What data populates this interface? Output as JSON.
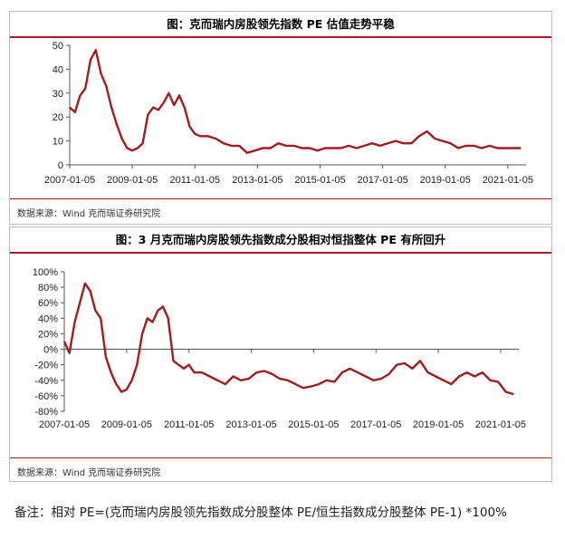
{
  "panel1": {
    "title": "图：克而瑞内房股领先指数 PE 估值走势平稳",
    "source": "数据来源：Wind  克而瑞证券研究院"
  },
  "panel2": {
    "title": "图：3 月克而瑞内房股领先指数成分股相对恒指整体 PE 有所回升",
    "source": "数据来源：Wind  克而瑞证券研究院"
  },
  "note": "备注：相对 PE=(克而瑞内房股领先指数成分股整体 PE/恒生指数成分股整体 PE-1) *100%",
  "chart_data": [
    {
      "type": "line",
      "title": "图：克而瑞内房股领先指数 PE 估值走势平稳",
      "xlabel": "",
      "ylabel": "",
      "ylim": [
        0,
        50
      ],
      "yticks": [
        "0",
        "10",
        "20",
        "30",
        "40",
        "50"
      ],
      "xticks": [
        "2007-01-05",
        "2009-01-05",
        "2011-01-05",
        "2013-01-05",
        "2015-01-05",
        "2017-01-05",
        "2019-01-05",
        "2021-01-05"
      ],
      "line_color": "#a11d22",
      "grid": false,
      "series": [
        {
          "x": [
            "2007-01",
            "2007-03",
            "2007-05",
            "2007-07",
            "2007-09",
            "2007-11",
            "2008-01",
            "2008-03",
            "2008-05",
            "2008-07",
            "2008-09",
            "2008-11",
            "2009-01",
            "2009-03",
            "2009-05",
            "2009-07",
            "2009-09",
            "2009-11",
            "2010-01",
            "2010-03",
            "2010-05",
            "2010-07",
            "2010-09",
            "2010-11",
            "2011-01",
            "2011-03",
            "2011-06",
            "2011-09",
            "2011-12",
            "2012-03",
            "2012-06",
            "2012-09",
            "2012-12",
            "2013-03",
            "2013-06",
            "2013-09",
            "2013-12",
            "2014-03",
            "2014-06",
            "2014-09",
            "2014-12",
            "2015-03",
            "2015-06",
            "2015-09",
            "2015-12",
            "2016-03",
            "2016-06",
            "2016-09",
            "2016-12",
            "2017-03",
            "2017-06",
            "2017-09",
            "2017-12",
            "2018-03",
            "2018-06",
            "2018-09",
            "2018-12",
            "2019-03",
            "2019-06",
            "2019-09",
            "2019-12",
            "2020-03",
            "2020-06",
            "2020-09",
            "2020-12",
            "2021-03",
            "2021-06"
          ],
          "values": [
            24,
            22,
            29,
            32,
            44,
            48,
            38,
            33,
            24,
            17,
            11,
            7,
            6,
            7,
            9,
            21,
            24,
            23,
            26,
            30,
            25,
            29,
            24,
            16,
            13,
            12,
            12,
            11,
            9,
            8,
            8,
            5,
            6,
            7,
            7,
            9,
            8,
            8,
            7,
            7,
            6,
            7,
            7,
            7,
            8,
            7,
            8,
            9,
            8,
            9,
            10,
            9,
            9,
            12,
            14,
            11,
            10,
            9,
            7,
            8,
            8,
            7,
            8,
            7,
            7,
            7,
            7
          ]
        }
      ]
    },
    {
      "type": "line",
      "title": "图：3 月克而瑞内房股领先指数成分股相对恒指整体 PE 有所回升",
      "xlabel": "",
      "ylabel": "",
      "ylim": [
        -80,
        100
      ],
      "yticks": [
        "-80%",
        "-60%",
        "-40%",
        "-20%",
        "0%",
        "20%",
        "40%",
        "60%",
        "80%",
        "100%"
      ],
      "xticks": [
        "2007-01-05",
        "2009-01-05",
        "2011-01-05",
        "2013-01-05",
        "2015-01-05",
        "2017-01-05",
        "2019-01-05",
        "2021-01-05"
      ],
      "line_color": "#a11d22",
      "grid": false,
      "series": [
        {
          "x": [
            "2007-01",
            "2007-03",
            "2007-05",
            "2007-07",
            "2007-09",
            "2007-11",
            "2008-01",
            "2008-03",
            "2008-05",
            "2008-07",
            "2008-09",
            "2008-11",
            "2009-01",
            "2009-03",
            "2009-05",
            "2009-07",
            "2009-09",
            "2009-11",
            "2010-01",
            "2010-03",
            "2010-05",
            "2010-07",
            "2010-09",
            "2010-11",
            "2011-01",
            "2011-03",
            "2011-06",
            "2011-09",
            "2011-12",
            "2012-03",
            "2012-06",
            "2012-09",
            "2012-12",
            "2013-03",
            "2013-06",
            "2013-09",
            "2013-12",
            "2014-03",
            "2014-06",
            "2014-09",
            "2014-12",
            "2015-03",
            "2015-06",
            "2015-09",
            "2015-12",
            "2016-03",
            "2016-06",
            "2016-09",
            "2016-12",
            "2017-03",
            "2017-06",
            "2017-09",
            "2017-12",
            "2018-03",
            "2018-06",
            "2018-09",
            "2018-12",
            "2019-03",
            "2019-06",
            "2019-09",
            "2019-12",
            "2020-03",
            "2020-06",
            "2020-09",
            "2020-12",
            "2021-03",
            "2021-06"
          ],
          "values": [
            10,
            -5,
            35,
            60,
            85,
            75,
            50,
            40,
            -10,
            -30,
            -45,
            -55,
            -52,
            -40,
            -20,
            20,
            40,
            35,
            50,
            55,
            40,
            -15,
            -20,
            -25,
            -20,
            -30,
            -30,
            -35,
            -40,
            -45,
            -35,
            -40,
            -38,
            -30,
            -28,
            -32,
            -38,
            -40,
            -45,
            -50,
            -48,
            -45,
            -40,
            -42,
            -30,
            -25,
            -30,
            -35,
            -40,
            -38,
            -32,
            -20,
            -18,
            -25,
            -15,
            -30,
            -35,
            -40,
            -45,
            -35,
            -30,
            -35,
            -30,
            -40,
            -42,
            -55,
            -58
          ]
        }
      ]
    }
  ]
}
